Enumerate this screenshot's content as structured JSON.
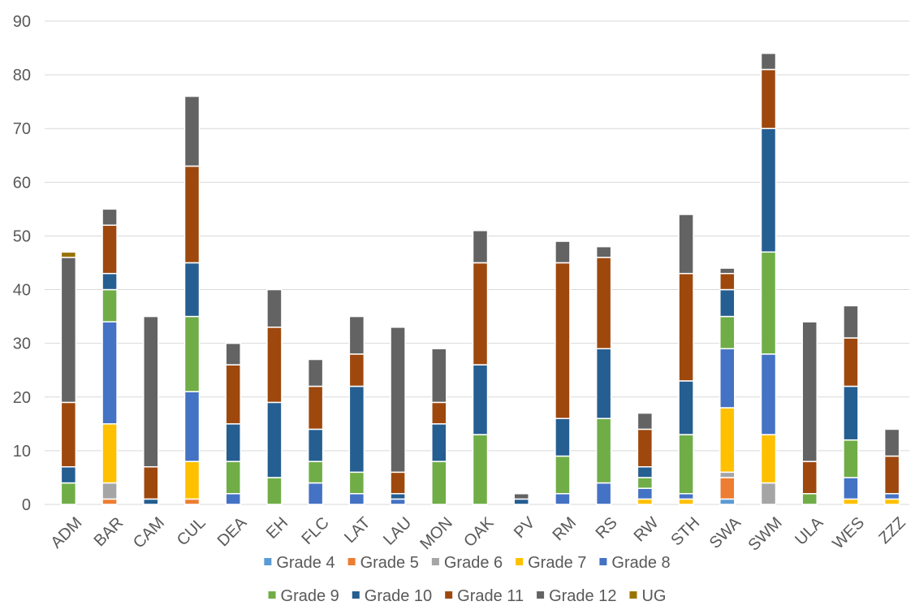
{
  "chart_data": {
    "type": "bar",
    "stacked": true,
    "title": "",
    "xlabel": "",
    "ylabel": "",
    "ylim": [
      0,
      90
    ],
    "yticks": [
      0,
      10,
      20,
      30,
      40,
      50,
      60,
      70,
      80,
      90
    ],
    "grid": true,
    "legend_position": "bottom",
    "categories": [
      "ADM",
      "BAR",
      "CAM",
      "CUL",
      "DEA",
      "EH",
      "FLC",
      "LAT",
      "LAU",
      "MON",
      "OAK",
      "PV",
      "RM",
      "RS",
      "RW",
      "STH",
      "SWA",
      "SWM",
      "ULA",
      "WES",
      "ZZZ"
    ],
    "series": [
      {
        "name": "Grade 4",
        "color": "#5b9bd5",
        "values": [
          0,
          0,
          0,
          0,
          0,
          0,
          0,
          0,
          0,
          0,
          0,
          0,
          0,
          0,
          0,
          0,
          1,
          0,
          0,
          0,
          0
        ]
      },
      {
        "name": "Grade 5",
        "color": "#ed7d31",
        "values": [
          0,
          1,
          0,
          1,
          0,
          0,
          0,
          0,
          0,
          0,
          0,
          0,
          0,
          0,
          0,
          0,
          4,
          0,
          0,
          0,
          0
        ]
      },
      {
        "name": "Grade 6",
        "color": "#a5a5a5",
        "values": [
          0,
          3,
          0,
          0,
          0,
          0,
          0,
          0,
          0,
          0,
          0,
          0,
          0,
          0,
          0,
          0,
          1,
          4,
          0,
          0,
          0
        ]
      },
      {
        "name": "Grade 7",
        "color": "#ffc000",
        "values": [
          0,
          11,
          0,
          7,
          0,
          0,
          0,
          0,
          0,
          0,
          0,
          0,
          0,
          0,
          1,
          1,
          12,
          9,
          0,
          1,
          1
        ]
      },
      {
        "name": "Grade 8",
        "color": "#4472c4",
        "values": [
          0,
          19,
          0,
          13,
          2,
          0,
          4,
          2,
          1,
          0,
          0,
          0,
          2,
          4,
          2,
          1,
          11,
          15,
          0,
          4,
          1
        ]
      },
      {
        "name": "Grade 9",
        "color": "#70ad47",
        "values": [
          4,
          6,
          0,
          14,
          6,
          5,
          4,
          4,
          0,
          8,
          13,
          0,
          7,
          12,
          2,
          11,
          6,
          19,
          2,
          7,
          0
        ]
      },
      {
        "name": "Grade 10",
        "color": "#255e91",
        "values": [
          3,
          3,
          1,
          10,
          7,
          14,
          6,
          16,
          1,
          7,
          13,
          1,
          7,
          13,
          2,
          10,
          5,
          23,
          0,
          10,
          0
        ]
      },
      {
        "name": "Grade 11",
        "color": "#9e480e",
        "values": [
          12,
          9,
          6,
          18,
          11,
          14,
          8,
          6,
          4,
          4,
          19,
          0,
          29,
          17,
          7,
          20,
          3,
          11,
          6,
          9,
          7
        ]
      },
      {
        "name": "Grade 12",
        "color": "#636363",
        "values": [
          27,
          3,
          28,
          13,
          4,
          7,
          5,
          7,
          27,
          10,
          6,
          1,
          4,
          2,
          3,
          11,
          1,
          3,
          26,
          6,
          5
        ]
      },
      {
        "name": "UG",
        "color": "#997300",
        "values": [
          1,
          0,
          0,
          0,
          0,
          0,
          0,
          0,
          0,
          0,
          0,
          0,
          0,
          0,
          0,
          0,
          0,
          0,
          0,
          0,
          0
        ]
      }
    ]
  }
}
